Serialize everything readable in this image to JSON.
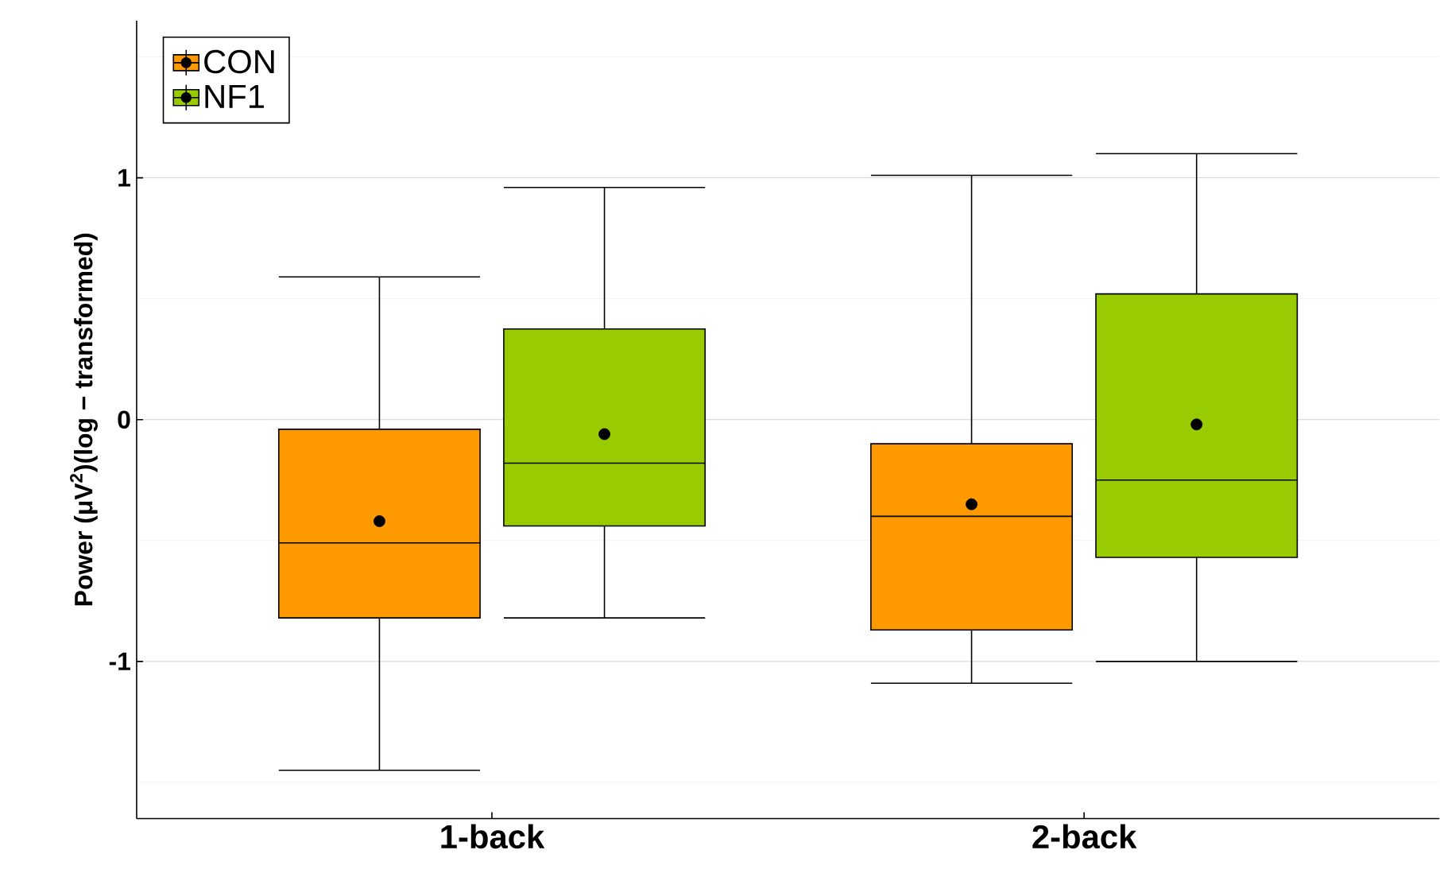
{
  "chart_data": {
    "type": "box",
    "ylabel": "Power (μV$^{2}$)(log − transformed)",
    "categories": [
      "1-back",
      "2-back"
    ],
    "series": [
      {
        "name": "CON",
        "color": "#ff9900",
        "boxes": [
          {
            "low": -1.45,
            "q1": -0.82,
            "median": -0.51,
            "q3": -0.04,
            "high": 0.59,
            "mean": -0.42
          },
          {
            "low": -1.09,
            "q1": -0.87,
            "median": -0.4,
            "q3": -0.1,
            "high": 1.01,
            "mean": -0.35
          }
        ]
      },
      {
        "name": "NF1",
        "color": "#99cc00",
        "boxes": [
          {
            "low": -0.82,
            "q1": -0.44,
            "median": -0.18,
            "q3": 0.375,
            "high": 0.96,
            "mean": -0.06
          },
          {
            "low": -1.0,
            "q1": -0.57,
            "median": -0.25,
            "q3": 0.52,
            "high": 1.1,
            "mean": -0.02
          }
        ]
      }
    ],
    "ylim": [
      -1.65,
      1.65
    ],
    "yticks": [
      {
        "value": -1.5,
        "label": null
      },
      -1,
      {
        "value": -0.5,
        "label": null
      },
      0,
      {
        "value": 0.5,
        "label": null
      },
      1,
      {
        "value": 1.5,
        "label": null
      }
    ],
    "grid": "y",
    "legend": "top left",
    "marker": "circle"
  }
}
